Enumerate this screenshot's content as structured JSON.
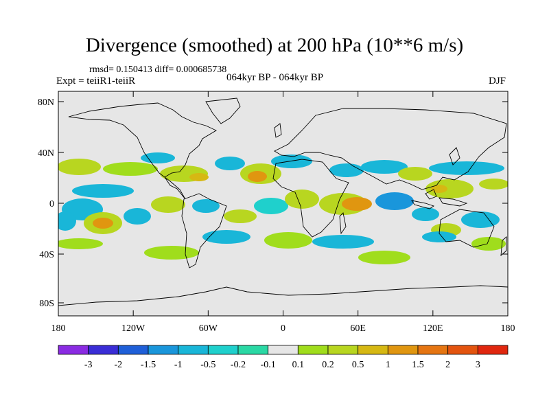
{
  "header": {
    "title": "Divergence (smoothed) at 200 hPa (10**6 m/s)",
    "stats": "rmsd= 0.150413 diff= 0.000685738",
    "experiment": "Expt = teiiR1-teiiR",
    "period": "064kyr BP - 064kyr BP",
    "season": "DJF"
  },
  "map": {
    "background_color": "#e6e6e6",
    "lat_labels": [
      "80N",
      "40N",
      "0",
      "40S",
      "80S"
    ],
    "lon_labels": [
      "180",
      "120W",
      "60W",
      "0",
      "60E",
      "120E",
      "180"
    ]
  },
  "colorbar": {
    "labels": [
      "-3",
      "-2",
      "-1.5",
      "-1",
      "-0.5",
      "-0.2",
      "-0.1",
      "0.1",
      "0.2",
      "0.5",
      "1",
      "1.5",
      "2",
      "3"
    ],
    "colors": [
      "#8a2be2",
      "#3a2dd6",
      "#1f5fd8",
      "#1a96db",
      "#19b6d8",
      "#1fd0cc",
      "#2ad8a4",
      "#e6e6e6",
      "#a0dd1c",
      "#b8d620",
      "#d6b813",
      "#e09610",
      "#e57512",
      "#e3540f",
      "#e0270f"
    ]
  }
}
